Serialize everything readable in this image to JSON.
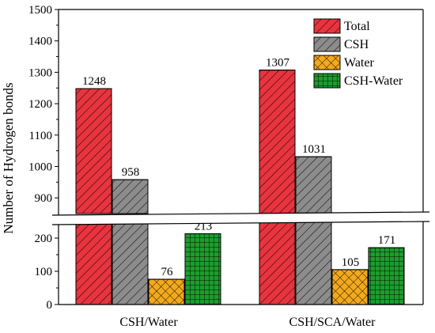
{
  "chart_data": {
    "type": "bar",
    "categories": [
      "CSH/Water",
      "CSH/SCA/Water"
    ],
    "series": [
      {
        "name": "Total",
        "values": [
          1248,
          1307
        ],
        "color": "#e8343f",
        "pattern": "diagonal-hatch"
      },
      {
        "name": "CSH",
        "values": [
          958,
          1031
        ],
        "color": "#8c8c8c",
        "pattern": "diagonal-hatch"
      },
      {
        "name": "Water",
        "values": [
          76,
          105
        ],
        "color": "#f2a91d",
        "pattern": "crosshatch"
      },
      {
        "name": "CSH-Water",
        "values": [
          213,
          171
        ],
        "color": "#1e9c2d",
        "pattern": "grid"
      }
    ],
    "data_labels": [
      [
        "1248",
        "958",
        "76",
        "213"
      ],
      [
        "1307",
        "1031",
        "105",
        "171"
      ]
    ],
    "ylabel": "Number of Hydrogen bonds",
    "xlabel": "",
    "axis_break": true,
    "y_lower_range": [
      0,
      250
    ],
    "y_upper_range": [
      850,
      1500
    ],
    "y_ticks_lower": [
      "0",
      "100",
      "200"
    ],
    "y_ticks_upper": [
      "900",
      "1000",
      "1100",
      "1200",
      "1300",
      "1400",
      "1500"
    ],
    "legend_position": "top-right",
    "grid": false
  }
}
